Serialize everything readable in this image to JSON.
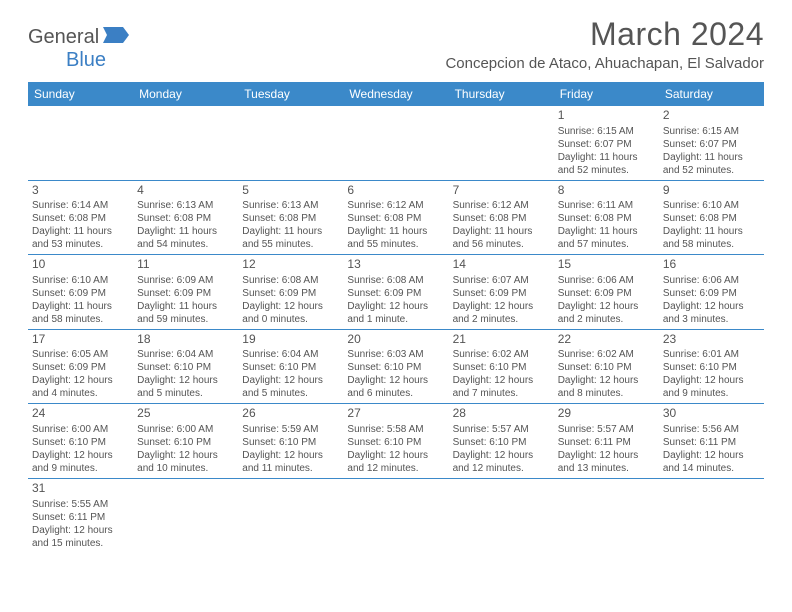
{
  "logo": {
    "text_general": "General",
    "text_blue": "Blue"
  },
  "title": "March 2024",
  "location": "Concepcion de Ataco, Ahuachapan, El Salvador",
  "colors": {
    "header_bg": "#3b89c9",
    "header_text": "#ffffff",
    "border": "#3b89c9",
    "body_text": "#545454",
    "title_text": "#555555",
    "logo_gray": "#555555",
    "logo_blue": "#3b7fc4",
    "page_bg": "#ffffff"
  },
  "typography": {
    "title_fontsize": 32,
    "location_fontsize": 15,
    "header_fontsize": 12,
    "daynum_fontsize": 12,
    "cell_fontsize": 10
  },
  "day_headers": [
    "Sunday",
    "Monday",
    "Tuesday",
    "Wednesday",
    "Thursday",
    "Friday",
    "Saturday"
  ],
  "weeks": [
    [
      null,
      null,
      null,
      null,
      null,
      {
        "n": "1",
        "sr": "Sunrise: 6:15 AM",
        "ss": "Sunset: 6:07 PM",
        "dl": "Daylight: 11 hours and 52 minutes."
      },
      {
        "n": "2",
        "sr": "Sunrise: 6:15 AM",
        "ss": "Sunset: 6:07 PM",
        "dl": "Daylight: 11 hours and 52 minutes."
      }
    ],
    [
      {
        "n": "3",
        "sr": "Sunrise: 6:14 AM",
        "ss": "Sunset: 6:08 PM",
        "dl": "Daylight: 11 hours and 53 minutes."
      },
      {
        "n": "4",
        "sr": "Sunrise: 6:13 AM",
        "ss": "Sunset: 6:08 PM",
        "dl": "Daylight: 11 hours and 54 minutes."
      },
      {
        "n": "5",
        "sr": "Sunrise: 6:13 AM",
        "ss": "Sunset: 6:08 PM",
        "dl": "Daylight: 11 hours and 55 minutes."
      },
      {
        "n": "6",
        "sr": "Sunrise: 6:12 AM",
        "ss": "Sunset: 6:08 PM",
        "dl": "Daylight: 11 hours and 55 minutes."
      },
      {
        "n": "7",
        "sr": "Sunrise: 6:12 AM",
        "ss": "Sunset: 6:08 PM",
        "dl": "Daylight: 11 hours and 56 minutes."
      },
      {
        "n": "8",
        "sr": "Sunrise: 6:11 AM",
        "ss": "Sunset: 6:08 PM",
        "dl": "Daylight: 11 hours and 57 minutes."
      },
      {
        "n": "9",
        "sr": "Sunrise: 6:10 AM",
        "ss": "Sunset: 6:08 PM",
        "dl": "Daylight: 11 hours and 58 minutes."
      }
    ],
    [
      {
        "n": "10",
        "sr": "Sunrise: 6:10 AM",
        "ss": "Sunset: 6:09 PM",
        "dl": "Daylight: 11 hours and 58 minutes."
      },
      {
        "n": "11",
        "sr": "Sunrise: 6:09 AM",
        "ss": "Sunset: 6:09 PM",
        "dl": "Daylight: 11 hours and 59 minutes."
      },
      {
        "n": "12",
        "sr": "Sunrise: 6:08 AM",
        "ss": "Sunset: 6:09 PM",
        "dl": "Daylight: 12 hours and 0 minutes."
      },
      {
        "n": "13",
        "sr": "Sunrise: 6:08 AM",
        "ss": "Sunset: 6:09 PM",
        "dl": "Daylight: 12 hours and 1 minute."
      },
      {
        "n": "14",
        "sr": "Sunrise: 6:07 AM",
        "ss": "Sunset: 6:09 PM",
        "dl": "Daylight: 12 hours and 2 minutes."
      },
      {
        "n": "15",
        "sr": "Sunrise: 6:06 AM",
        "ss": "Sunset: 6:09 PM",
        "dl": "Daylight: 12 hours and 2 minutes."
      },
      {
        "n": "16",
        "sr": "Sunrise: 6:06 AM",
        "ss": "Sunset: 6:09 PM",
        "dl": "Daylight: 12 hours and 3 minutes."
      }
    ],
    [
      {
        "n": "17",
        "sr": "Sunrise: 6:05 AM",
        "ss": "Sunset: 6:09 PM",
        "dl": "Daylight: 12 hours and 4 minutes."
      },
      {
        "n": "18",
        "sr": "Sunrise: 6:04 AM",
        "ss": "Sunset: 6:10 PM",
        "dl": "Daylight: 12 hours and 5 minutes."
      },
      {
        "n": "19",
        "sr": "Sunrise: 6:04 AM",
        "ss": "Sunset: 6:10 PM",
        "dl": "Daylight: 12 hours and 5 minutes."
      },
      {
        "n": "20",
        "sr": "Sunrise: 6:03 AM",
        "ss": "Sunset: 6:10 PM",
        "dl": "Daylight: 12 hours and 6 minutes."
      },
      {
        "n": "21",
        "sr": "Sunrise: 6:02 AM",
        "ss": "Sunset: 6:10 PM",
        "dl": "Daylight: 12 hours and 7 minutes."
      },
      {
        "n": "22",
        "sr": "Sunrise: 6:02 AM",
        "ss": "Sunset: 6:10 PM",
        "dl": "Daylight: 12 hours and 8 minutes."
      },
      {
        "n": "23",
        "sr": "Sunrise: 6:01 AM",
        "ss": "Sunset: 6:10 PM",
        "dl": "Daylight: 12 hours and 9 minutes."
      }
    ],
    [
      {
        "n": "24",
        "sr": "Sunrise: 6:00 AM",
        "ss": "Sunset: 6:10 PM",
        "dl": "Daylight: 12 hours and 9 minutes."
      },
      {
        "n": "25",
        "sr": "Sunrise: 6:00 AM",
        "ss": "Sunset: 6:10 PM",
        "dl": "Daylight: 12 hours and 10 minutes."
      },
      {
        "n": "26",
        "sr": "Sunrise: 5:59 AM",
        "ss": "Sunset: 6:10 PM",
        "dl": "Daylight: 12 hours and 11 minutes."
      },
      {
        "n": "27",
        "sr": "Sunrise: 5:58 AM",
        "ss": "Sunset: 6:10 PM",
        "dl": "Daylight: 12 hours and 12 minutes."
      },
      {
        "n": "28",
        "sr": "Sunrise: 5:57 AM",
        "ss": "Sunset: 6:10 PM",
        "dl": "Daylight: 12 hours and 12 minutes."
      },
      {
        "n": "29",
        "sr": "Sunrise: 5:57 AM",
        "ss": "Sunset: 6:11 PM",
        "dl": "Daylight: 12 hours and 13 minutes."
      },
      {
        "n": "30",
        "sr": "Sunrise: 5:56 AM",
        "ss": "Sunset: 6:11 PM",
        "dl": "Daylight: 12 hours and 14 minutes."
      }
    ],
    [
      {
        "n": "31",
        "sr": "Sunrise: 5:55 AM",
        "ss": "Sunset: 6:11 PM",
        "dl": "Daylight: 12 hours and 15 minutes."
      },
      null,
      null,
      null,
      null,
      null,
      null
    ]
  ]
}
